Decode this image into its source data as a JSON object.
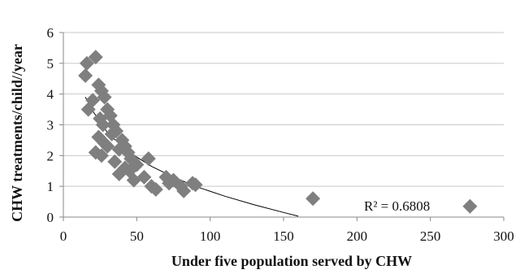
{
  "chart_data": {
    "type": "scatter",
    "title": "",
    "xlabel": "Under five population served by CHW",
    "ylabel": "CHW treatments/child//year",
    "xlim": [
      0,
      300
    ],
    "ylim": [
      0,
      6
    ],
    "x_ticks": [
      0,
      50,
      100,
      150,
      200,
      250,
      300
    ],
    "y_ticks": [
      0,
      1,
      2,
      3,
      4,
      5,
      6
    ],
    "grid": "horizontal",
    "marker": "diamond",
    "marker_color": "#7f7f7f",
    "trendline_color": "#000000",
    "annotation": "R² = 0.6808",
    "points": [
      {
        "x": 15,
        "y": 4.6
      },
      {
        "x": 16,
        "y": 5.0
      },
      {
        "x": 22,
        "y": 5.2
      },
      {
        "x": 17,
        "y": 3.5
      },
      {
        "x": 20,
        "y": 3.8
      },
      {
        "x": 24,
        "y": 4.3
      },
      {
        "x": 26,
        "y": 4.1
      },
      {
        "x": 28,
        "y": 3.9
      },
      {
        "x": 25,
        "y": 3.2
      },
      {
        "x": 27,
        "y": 3.0
      },
      {
        "x": 30,
        "y": 3.5
      },
      {
        "x": 32,
        "y": 3.3
      },
      {
        "x": 34,
        "y": 3.0
      },
      {
        "x": 24,
        "y": 2.6
      },
      {
        "x": 28,
        "y": 2.4
      },
      {
        "x": 22,
        "y": 2.1
      },
      {
        "x": 26,
        "y": 2.0
      },
      {
        "x": 30,
        "y": 2.3
      },
      {
        "x": 33,
        "y": 2.7
      },
      {
        "x": 36,
        "y": 2.8
      },
      {
        "x": 38,
        "y": 2.2
      },
      {
        "x": 40,
        "y": 2.5
      },
      {
        "x": 42,
        "y": 2.3
      },
      {
        "x": 44,
        "y": 2.1
      },
      {
        "x": 46,
        "y": 1.9
      },
      {
        "x": 35,
        "y": 1.8
      },
      {
        "x": 38,
        "y": 1.4
      },
      {
        "x": 42,
        "y": 1.6
      },
      {
        "x": 45,
        "y": 1.5
      },
      {
        "x": 48,
        "y": 1.2
      },
      {
        "x": 50,
        "y": 1.7
      },
      {
        "x": 55,
        "y": 1.3
      },
      {
        "x": 58,
        "y": 1.9
      },
      {
        "x": 60,
        "y": 1.0
      },
      {
        "x": 63,
        "y": 0.9
      },
      {
        "x": 70,
        "y": 1.3
      },
      {
        "x": 72,
        "y": 1.1
      },
      {
        "x": 75,
        "y": 1.2
      },
      {
        "x": 80,
        "y": 1.0
      },
      {
        "x": 82,
        "y": 0.85
      },
      {
        "x": 88,
        "y": 1.1
      },
      {
        "x": 90,
        "y": 1.05
      },
      {
        "x": 170,
        "y": 0.6
      },
      {
        "x": 277,
        "y": 0.35
      }
    ],
    "trendline": [
      {
        "x": 15,
        "y": 3.9
      },
      {
        "x": 20,
        "y": 3.45
      },
      {
        "x": 30,
        "y": 2.75
      },
      {
        "x": 40,
        "y": 2.3
      },
      {
        "x": 50,
        "y": 1.95
      },
      {
        "x": 60,
        "y": 1.65
      },
      {
        "x": 75,
        "y": 1.3
      },
      {
        "x": 90,
        "y": 1.0
      },
      {
        "x": 110,
        "y": 0.68
      },
      {
        "x": 130,
        "y": 0.4
      },
      {
        "x": 150,
        "y": 0.15
      },
      {
        "x": 160,
        "y": 0.03
      }
    ]
  }
}
